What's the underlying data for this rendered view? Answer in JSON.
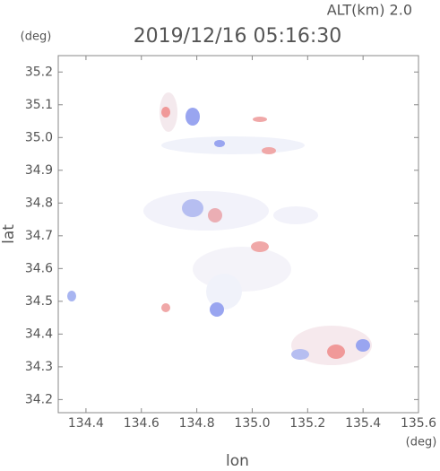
{
  "chart_data": {
    "type": "map",
    "title": "2019/12/16 05:16:30",
    "subtitle": "ALT(km) 2.0",
    "x_label": "lon",
    "y_label": "lat",
    "x_unit": "(deg)",
    "y_unit": "(deg)",
    "xlim": [
      134.3,
      135.6
    ],
    "xticks": [
      {
        "value": 134.4,
        "label": "134.4"
      },
      {
        "value": 134.6,
        "label": "134.6"
      },
      {
        "value": 134.8,
        "label": "134.8"
      },
      {
        "value": 135.0,
        "label": "135.0"
      },
      {
        "value": 135.2,
        "label": "135.2"
      },
      {
        "value": 135.4,
        "label": "135.4"
      },
      {
        "value": 135.6,
        "label": "135.6"
      }
    ],
    "ylim": [
      34.16,
      35.25
    ],
    "yticks": [
      34.2,
      34.3,
      34.4,
      34.5,
      34.6,
      34.7,
      34.8,
      34.9,
      {
        "value": 35.0,
        "label": "35.0"
      },
      35.1,
      35.2
    ]
  }
}
